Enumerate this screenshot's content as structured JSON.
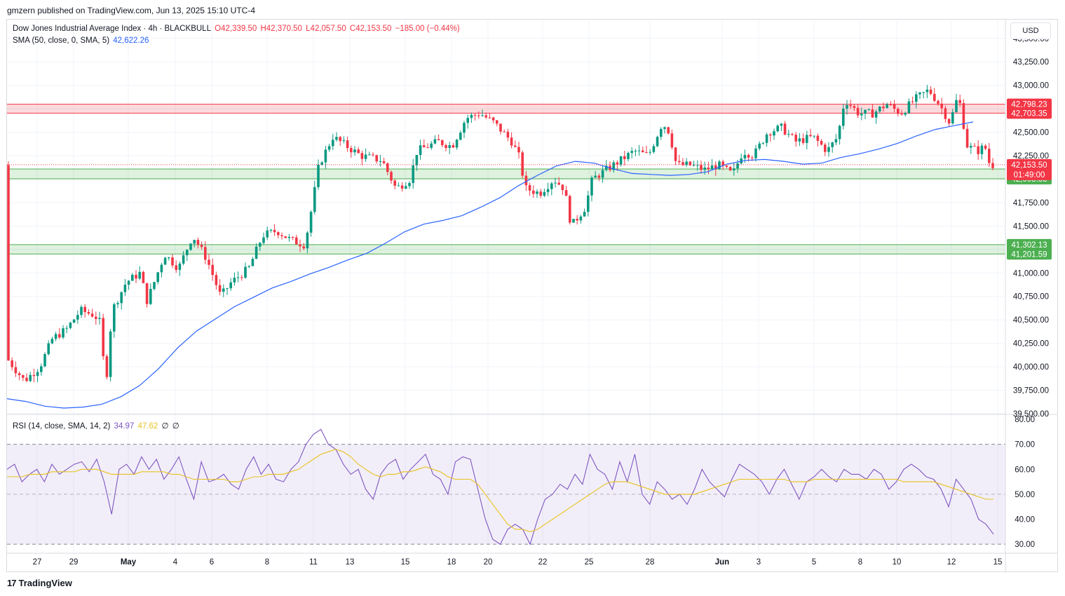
{
  "header": {
    "published": "gmzern published on TradingView.com, Jun 13, 2025 15:10 UTC-4"
  },
  "legend": {
    "symbol": "Dow Jones Industrial Average Index · 4h · BLACKBULL",
    "open": "O42,339.50",
    "high": "H42,370.50",
    "low": "L42,057.50",
    "close": "C42,153.50",
    "change": "−185.00 (−0.44%)",
    "sma_label": "SMA (50, close, 0, SMA, 5)",
    "sma_value": "42,622.26",
    "rsi_label": "RSI (14, close, SMA, 14, 2)",
    "rsi_value": "34.97",
    "rsi_sma_value": "47.62",
    "rsi_extra1": "∅",
    "rsi_extra2": "∅"
  },
  "currency_button": "USD",
  "footer": {
    "brand": "TradingView",
    "logo": "17"
  },
  "colors": {
    "up": "#089981",
    "down": "#f23645",
    "sma": "#2962ff",
    "rsi": "#7e57c2",
    "rsi_sma": "#e8c21f",
    "resistance_zone": "#f23645",
    "support_zone": "#4caf50"
  },
  "chart_data": [
    {
      "type": "candlestick",
      "title": "Dow Jones Industrial Average Index · 4h · BLACKBULL",
      "ylim": [
        39500,
        43700
      ],
      "y_ticks": [
        "43,500.00",
        "43,250.00",
        "43,000.00",
        "42,750.00",
        "42,500.00",
        "42,250.00",
        "42,000.00",
        "41,750.00",
        "41,500.00",
        "41,250.00",
        "41,000.00",
        "40,750.00",
        "40,500.00",
        "40,250.00",
        "40,000.00",
        "39,750.00",
        "39,500.00"
      ],
      "x_labels": [
        "27",
        "29",
        "May",
        "4",
        "6",
        "8",
        "11",
        "13",
        "15",
        "18",
        "20",
        "22",
        "25",
        "28",
        "Jun",
        "3",
        "5",
        "8",
        "10",
        "12",
        "15"
      ],
      "zones": [
        {
          "kind": "resistance",
          "top": 42798.23,
          "bottom": 42703.35,
          "top_label": "42,798.23",
          "bottom_label": "42,703.35"
        },
        {
          "kind": "support",
          "top": 42108.07,
          "bottom": 42003.33,
          "top_label": "42,108.07",
          "bottom_label": "42,003.33"
        },
        {
          "kind": "support",
          "top": 41302.13,
          "bottom": 41201.59,
          "top_label": "41,302.13",
          "bottom_label": "41,201.59"
        }
      ],
      "last_price": {
        "value": 42153.5,
        "label": "42,153.50",
        "countdown": "01:49:00"
      },
      "sma_series": [
        39660,
        39630,
        39580,
        39560,
        39570,
        39600,
        39680,
        39800,
        39980,
        40200,
        40380,
        40510,
        40640,
        40740,
        40840,
        40910,
        40990,
        41060,
        41140,
        41210,
        41320,
        41440,
        41520,
        41560,
        41610,
        41700,
        41800,
        41930,
        42040,
        42140,
        42190,
        42170,
        42110,
        42060,
        42050,
        42040,
        42050,
        42080,
        42160,
        42200,
        42210,
        42190,
        42160,
        42170,
        42230,
        42270,
        42320,
        42380,
        42460,
        42530,
        42570,
        42610
      ],
      "candles_note": "OHLC approximated from chart; see script"
    },
    {
      "type": "line",
      "title": "RSI (14, close, SMA, 14, 2)",
      "ylim": [
        25,
        80
      ],
      "y_ticks": [
        "80.00",
        "70.00",
        "60.00",
        "50.00",
        "40.00",
        "30.00"
      ],
      "bands": [
        70,
        50,
        30
      ],
      "series": [
        {
          "name": "RSI",
          "values": [
            60,
            62,
            55,
            58,
            60,
            55,
            62,
            58,
            60,
            62,
            63,
            59,
            64,
            55,
            42,
            60,
            62,
            58,
            65,
            60,
            64,
            56,
            60,
            65,
            56,
            48,
            63,
            55,
            56,
            58,
            54,
            52,
            60,
            65,
            58,
            62,
            56,
            55,
            60,
            63,
            70,
            74,
            76,
            70,
            68,
            62,
            58,
            60,
            52,
            48,
            58,
            62,
            64,
            56,
            60,
            63,
            66,
            58,
            56,
            50,
            63,
            65,
            64,
            52,
            40,
            32,
            30,
            36,
            38,
            36,
            30,
            40,
            48,
            50,
            54,
            52,
            58,
            54,
            66,
            60,
            58,
            52,
            63,
            55,
            66,
            50,
            46,
            55,
            52,
            48,
            50,
            46,
            52,
            60,
            55,
            52,
            49,
            56,
            62,
            60,
            58,
            55,
            50,
            56,
            60,
            54,
            48,
            55,
            57,
            60,
            57,
            55,
            60,
            58,
            58,
            56,
            60,
            58,
            52,
            55,
            60,
            62,
            60,
            57,
            56,
            52,
            45,
            56,
            52,
            48,
            40,
            38,
            34
          ]
        },
        {
          "name": "RSI-based MA",
          "values": [
            57,
            57,
            57,
            58,
            58,
            58,
            59,
            59,
            59,
            59,
            60,
            60,
            60,
            59,
            58,
            58,
            58,
            58,
            59,
            59,
            59,
            59,
            58,
            58,
            57,
            56,
            56,
            56,
            56,
            56,
            55,
            55,
            56,
            57,
            57,
            58,
            58,
            58,
            59,
            60,
            62,
            64,
            66,
            67,
            68,
            67,
            65,
            62,
            60,
            58,
            57,
            58,
            58,
            59,
            59,
            60,
            61,
            60,
            59,
            57,
            56,
            56,
            56,
            54,
            50,
            46,
            42,
            38,
            36,
            36,
            35,
            36,
            38,
            40,
            42,
            44,
            46,
            48,
            50,
            52,
            54,
            55,
            55,
            55,
            54,
            53,
            52,
            51,
            50,
            50,
            50,
            50,
            50,
            51,
            52,
            53,
            54,
            55,
            56,
            56,
            56,
            56,
            56,
            56,
            56,
            55,
            55,
            55,
            56,
            56,
            56,
            56,
            56,
            56,
            56,
            56,
            56,
            56,
            56,
            56,
            55,
            55,
            55,
            55,
            55,
            54,
            53,
            52,
            51,
            50,
            49,
            48,
            48
          ]
        }
      ]
    }
  ]
}
